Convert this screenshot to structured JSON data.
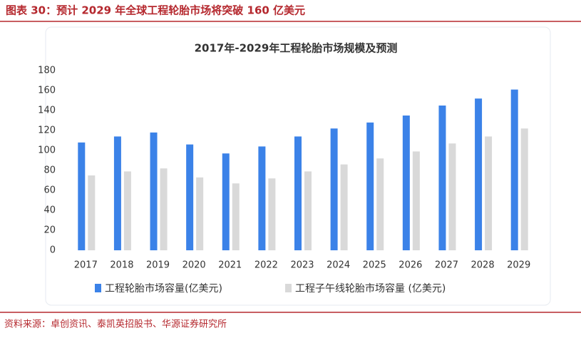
{
  "header": {
    "title": "图表 30：预计 2029 年全球工程轮胎市场将突破 160 亿美元"
  },
  "chart_data": {
    "type": "bar",
    "title": "2017年-2029年工程轮胎市场规模及预测",
    "categories": [
      "2017",
      "2018",
      "2019",
      "2020",
      "2021",
      "2022",
      "2023",
      "2024",
      "2025",
      "2026",
      "2027",
      "2028",
      "2029"
    ],
    "series": [
      {
        "name": "工程轮胎市场容量(亿美元)",
        "color": "#3b82e8",
        "values": [
          108,
          114,
          118,
          106,
          97,
          104,
          114,
          122,
          128,
          135,
          145,
          152,
          161
        ]
      },
      {
        "name": "工程子午线轮胎市场容量 (亿美元)",
        "color": "#d9d9d9",
        "values": [
          75,
          79,
          82,
          73,
          67,
          72,
          79,
          86,
          92,
          99,
          107,
          114,
          122
        ]
      }
    ],
    "ylim": [
      0,
      180
    ],
    "yticks": [
      0,
      20,
      40,
      60,
      80,
      100,
      120,
      140,
      160,
      180
    ],
    "grid": false,
    "legend": "bottom"
  },
  "source": "资料来源：卓创资讯、泰凯英招股书、华源证券研究所"
}
